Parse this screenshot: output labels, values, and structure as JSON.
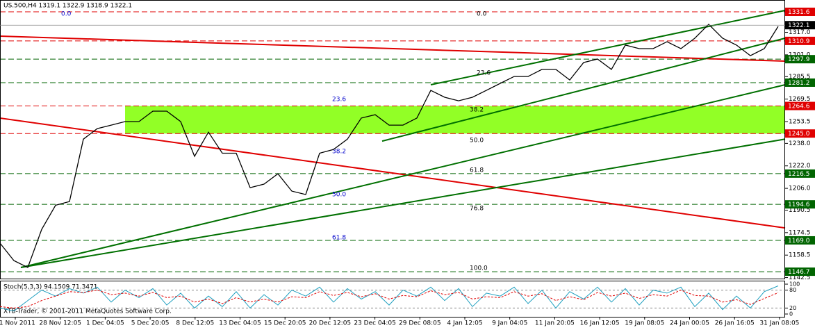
{
  "chart_data": {
    "type": "line",
    "title": "US.500,H4  1319.1 1322.9 1318.9 1322.1",
    "footer": "XTB-Trader, © 2001-2011 MetaQuotes Software Corp.",
    "xlim": [
      0,
      113
    ],
    "ylim": [
      1141.3,
      1340.0
    ],
    "x_labels": [
      "21 Nov 2011",
      "28 Nov 12:05",
      "1 Dec 04:05",
      "5 Dec 20:05",
      "8 Dec 12:05",
      "13 Dec 04:05",
      "15 Dec 20:05",
      "20 Dec 12:05",
      "23 Dec 04:05",
      "29 Dec 08:05",
      "4 Jan 12:05",
      "9 Jan 04:05",
      "11 Jan 20:05",
      "16 Jan 12:05",
      "19 Jan 08:05",
      "24 Jan 00:05",
      "26 Jan 16:05",
      "31 Jan 08:05"
    ],
    "yticks": [
      {
        "value": 1317.0,
        "label": "1317.0"
      },
      {
        "value": 1301.0,
        "label": "1301.0"
      },
      1285.5,
      1269.5,
      1253.5,
      {
        "value": 1238.0,
        "label": "1238.0"
      },
      {
        "value": 1222.0,
        "label": "1222.0"
      },
      {
        "value": 1206.0,
        "label": "1206.0"
      },
      1190.5,
      1174.5,
      1158.5,
      1142.5
    ],
    "levels": [
      {
        "value": 1331.6,
        "color": "#e00000"
      },
      {
        "value": 1310.9,
        "color": "#e00000"
      },
      {
        "value": 1297.9,
        "color": "#006400"
      },
      {
        "value": 1281.2,
        "color": "#006400"
      },
      {
        "value": 1264.6,
        "color": "#e00000"
      },
      {
        "value": 1245.0,
        "label": "1245.0",
        "color": "#e00000"
      },
      {
        "value": 1216.5,
        "color": "#006400"
      },
      {
        "value": 1194.6,
        "color": "#006400"
      },
      {
        "value": 1169.0,
        "label": "1169.0",
        "color": "#006400"
      },
      {
        "value": 1146.7,
        "color": "#006400"
      }
    ],
    "last_price": {
      "value": 1322.1,
      "color": "#000000"
    },
    "zones": [
      {
        "x1": 18,
        "x2": 113,
        "low": 1245.0,
        "high": 1264.6,
        "color": "#7fff00"
      }
    ],
    "series": [
      {
        "name": "US.500",
        "color": "#000000",
        "x": [
          0,
          2,
          4,
          6,
          8,
          10,
          12,
          14,
          16,
          18,
          20,
          22,
          24,
          26,
          28,
          30,
          32,
          34,
          36,
          38,
          40,
          42,
          44,
          46,
          48,
          50,
          52,
          54,
          56,
          58,
          60,
          62,
          64,
          66,
          68,
          70,
          72,
          74,
          76,
          78,
          80,
          82,
          84,
          86,
          88,
          90,
          92,
          94,
          96,
          98,
          100,
          102,
          104,
          106,
          108,
          110,
          112
        ],
        "values": [
          1167,
          1154.6,
          1149.7,
          1176.8,
          1194,
          1196.6,
          1241,
          1248.5,
          1251,
          1253.5,
          1253.5,
          1260.9,
          1260.9,
          1253.5,
          1228.8,
          1246,
          1231,
          1231,
          1206.5,
          1209,
          1216.4,
          1204,
          1201.6,
          1231,
          1233.7,
          1241,
          1256,
          1258.4,
          1251,
          1251,
          1256,
          1275.7,
          1270.8,
          1268.3,
          1270.8,
          1275.7,
          1280.7,
          1285.6,
          1285.6,
          1290.6,
          1290.6,
          1283.1,
          1295.5,
          1298,
          1290.6,
          1307.9,
          1305.4,
          1305.4,
          1310.3,
          1305.4,
          1312.8,
          1322.7,
          1312.8,
          1307.9,
          1300.4,
          1305.4,
          1321.2
        ]
      }
    ],
    "trendlines": [
      {
        "x1": 0,
        "y1": 1314.3,
        "x2": 113,
        "y2": 1296.5,
        "color": "#e00000"
      },
      {
        "x1": 0,
        "y1": 1256,
        "x2": 113,
        "y2": 1177.8,
        "color": "#e00000"
      },
      {
        "x1": 3,
        "y1": 1149.7,
        "x2": 113,
        "y2": 1241,
        "color": "#007000"
      },
      {
        "x1": 3,
        "y1": 1149.7,
        "x2": 113,
        "y2": 1279.7,
        "color": "#007000"
      },
      {
        "x1": 62,
        "y1": 1279.7,
        "x2": 113,
        "y2": 1332.6,
        "color": "#007000"
      },
      {
        "x1": 55,
        "y1": 1239.6,
        "x2": 113,
        "y2": 1312.8,
        "color": "#007000"
      }
    ],
    "annotations": [
      {
        "text": "0.0",
        "x": 8.8,
        "price": 1330.1,
        "color": "#0000cc"
      },
      {
        "text": "23.6",
        "x": 47.8,
        "price": 1269.3,
        "color": "#0000cc"
      },
      {
        "text": "38.2",
        "x": 47.8,
        "price": 1232.2,
        "color": "#0000cc"
      },
      {
        "text": "50.0",
        "x": 47.8,
        "price": 1201.6,
        "color": "#0000cc"
      },
      {
        "text": "61.8",
        "x": 47.8,
        "price": 1170.9,
        "color": "#0000cc"
      },
      {
        "text": "0.0",
        "x": 68.6,
        "price": 1330.1,
        "color": "#000000"
      },
      {
        "text": "23.6",
        "x": 68.6,
        "price": 1288.1,
        "color": "#000000"
      },
      {
        "text": "38.2",
        "x": 67.6,
        "price": 1261.9,
        "color": "#000000"
      },
      {
        "text": "50.0",
        "x": 67.6,
        "price": 1240.1,
        "color": "#000000"
      },
      {
        "text": "61.8",
        "x": 67.6,
        "price": 1218.9,
        "color": "#000000"
      },
      {
        "text": "76.8",
        "x": 67.6,
        "price": 1191.7,
        "color": "#000000"
      },
      {
        "text": "100.0",
        "x": 67.6,
        "price": 1149.2,
        "color": "#000000"
      }
    ],
    "stochastic": {
      "title": "Stoch(5,3,3) 94.1509 71.3471",
      "ylim": [
        0,
        100
      ],
      "yticks": [
        100,
        80,
        20,
        0
      ],
      "levels": [
        80,
        20
      ],
      "k": {
        "color": "#20a0c0",
        "values": [
          20,
          10,
          45,
          80,
          60,
          85,
          70,
          90,
          40,
          80,
          55,
          85,
          30,
          70,
          20,
          60,
          25,
          75,
          20,
          65,
          30,
          80,
          60,
          90,
          40,
          85,
          50,
          75,
          30,
          80,
          60,
          90,
          45,
          85,
          25,
          70,
          60,
          90,
          35,
          80,
          20,
          75,
          50,
          90,
          40,
          85,
          30,
          80,
          70,
          90,
          25,
          70,
          15,
          60,
          20,
          75,
          94.2
        ]
      },
      "d": {
        "color": "#e00000",
        "values": [
          25,
          20,
          25,
          45,
          60,
          75,
          72,
          80,
          65,
          70,
          60,
          72,
          55,
          60,
          40,
          50,
          35,
          55,
          40,
          50,
          40,
          58,
          55,
          75,
          62,
          72,
          58,
          68,
          50,
          62,
          58,
          78,
          65,
          72,
          50,
          58,
          55,
          75,
          60,
          68,
          45,
          58,
          48,
          72,
          60,
          70,
          52,
          65,
          60,
          80,
          62,
          60,
          40,
          48,
          32,
          52,
          71.3
        ]
      }
    }
  }
}
